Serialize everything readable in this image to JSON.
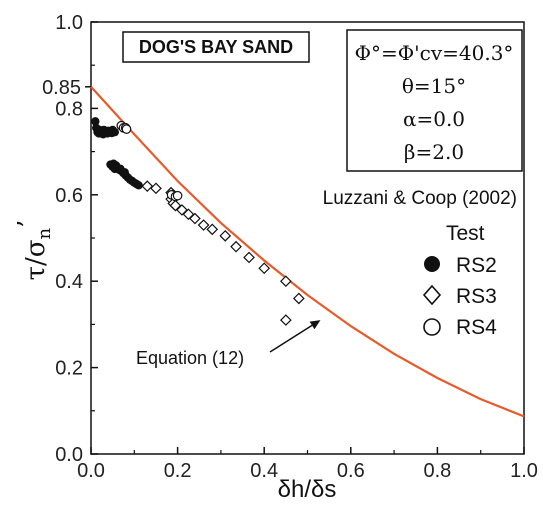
{
  "chart_data": {
    "type": "scatter",
    "xlabel": "δh/δs",
    "ylabel": "τ/σn'",
    "xlim": [
      0,
      1.0
    ],
    "ylim": [
      0,
      1.0
    ],
    "x_ticks": [
      "0.0",
      "0.2",
      "0.4",
      "0.6",
      "0.8",
      "1.0"
    ],
    "y_ticks": [
      "0.0",
      "0.2",
      "0.4",
      "0.6",
      "0.8",
      "1.0"
    ],
    "y_extra_tick": "0.85",
    "y_extra_tick_value": 0.85,
    "grid": false,
    "title_box": "DOG'S BAY SAND",
    "parameters": [
      "Φ°=Φ'cv=40.3°",
      "θ=15°",
      "α=0.0",
      "β=2.0"
    ],
    "source": "Luzzani & Coop (2002)",
    "legend_title": "Test",
    "legend_placement": "right",
    "annotation": "Equation (12)",
    "annotation_target": [
      0.53,
      0.31
    ],
    "curve": {
      "name": "Equation (12)",
      "color": "#e85a2a",
      "points": [
        [
          0.0,
          0.85
        ],
        [
          0.1,
          0.74
        ],
        [
          0.2,
          0.632
        ],
        [
          0.3,
          0.535
        ],
        [
          0.4,
          0.448
        ],
        [
          0.5,
          0.368
        ],
        [
          0.6,
          0.296
        ],
        [
          0.7,
          0.232
        ],
        [
          0.8,
          0.176
        ],
        [
          0.9,
          0.127
        ],
        [
          1.0,
          0.087
        ]
      ]
    },
    "series": [
      {
        "name": "RS2",
        "marker": "filled-circle",
        "points": [
          [
            0.01,
            0.77
          ],
          [
            0.012,
            0.755
          ],
          [
            0.015,
            0.745
          ],
          [
            0.02,
            0.75
          ],
          [
            0.025,
            0.745
          ],
          [
            0.03,
            0.75
          ],
          [
            0.035,
            0.745
          ],
          [
            0.04,
            0.748
          ],
          [
            0.045,
            0.745
          ],
          [
            0.05,
            0.75
          ],
          [
            0.018,
            0.742
          ],
          [
            0.028,
            0.74
          ],
          [
            0.038,
            0.742
          ],
          [
            0.048,
            0.743
          ],
          [
            0.055,
            0.745
          ],
          [
            0.045,
            0.67
          ],
          [
            0.05,
            0.665
          ],
          [
            0.055,
            0.66
          ],
          [
            0.06,
            0.662
          ],
          [
            0.065,
            0.658
          ],
          [
            0.07,
            0.655
          ],
          [
            0.075,
            0.65
          ],
          [
            0.08,
            0.645
          ],
          [
            0.085,
            0.64
          ],
          [
            0.09,
            0.635
          ],
          [
            0.095,
            0.632
          ],
          [
            0.1,
            0.628
          ],
          [
            0.105,
            0.625
          ],
          [
            0.11,
            0.622
          ],
          [
            0.052,
            0.672
          ],
          [
            0.058,
            0.668
          ],
          [
            0.068,
            0.66
          ],
          [
            0.078,
            0.652
          ]
        ]
      },
      {
        "name": "RS3",
        "marker": "open-diamond",
        "points": [
          [
            0.13,
            0.62
          ],
          [
            0.15,
            0.615
          ],
          [
            0.185,
            0.605
          ],
          [
            0.19,
            0.6
          ],
          [
            0.185,
            0.59
          ],
          [
            0.19,
            0.58
          ],
          [
            0.195,
            0.575
          ],
          [
            0.21,
            0.565
          ],
          [
            0.225,
            0.555
          ],
          [
            0.24,
            0.545
          ],
          [
            0.26,
            0.53
          ],
          [
            0.28,
            0.52
          ],
          [
            0.31,
            0.505
          ],
          [
            0.335,
            0.48
          ],
          [
            0.365,
            0.455
          ],
          [
            0.4,
            0.43
          ],
          [
            0.45,
            0.4
          ],
          [
            0.48,
            0.36
          ],
          [
            0.45,
            0.31
          ]
        ]
      },
      {
        "name": "RS4",
        "marker": "open-circle",
        "points": [
          [
            0.07,
            0.76
          ],
          [
            0.075,
            0.755
          ],
          [
            0.08,
            0.755
          ],
          [
            0.082,
            0.752
          ],
          [
            0.186,
            0.6
          ],
          [
            0.195,
            0.596
          ],
          [
            0.2,
            0.598
          ]
        ]
      }
    ]
  }
}
